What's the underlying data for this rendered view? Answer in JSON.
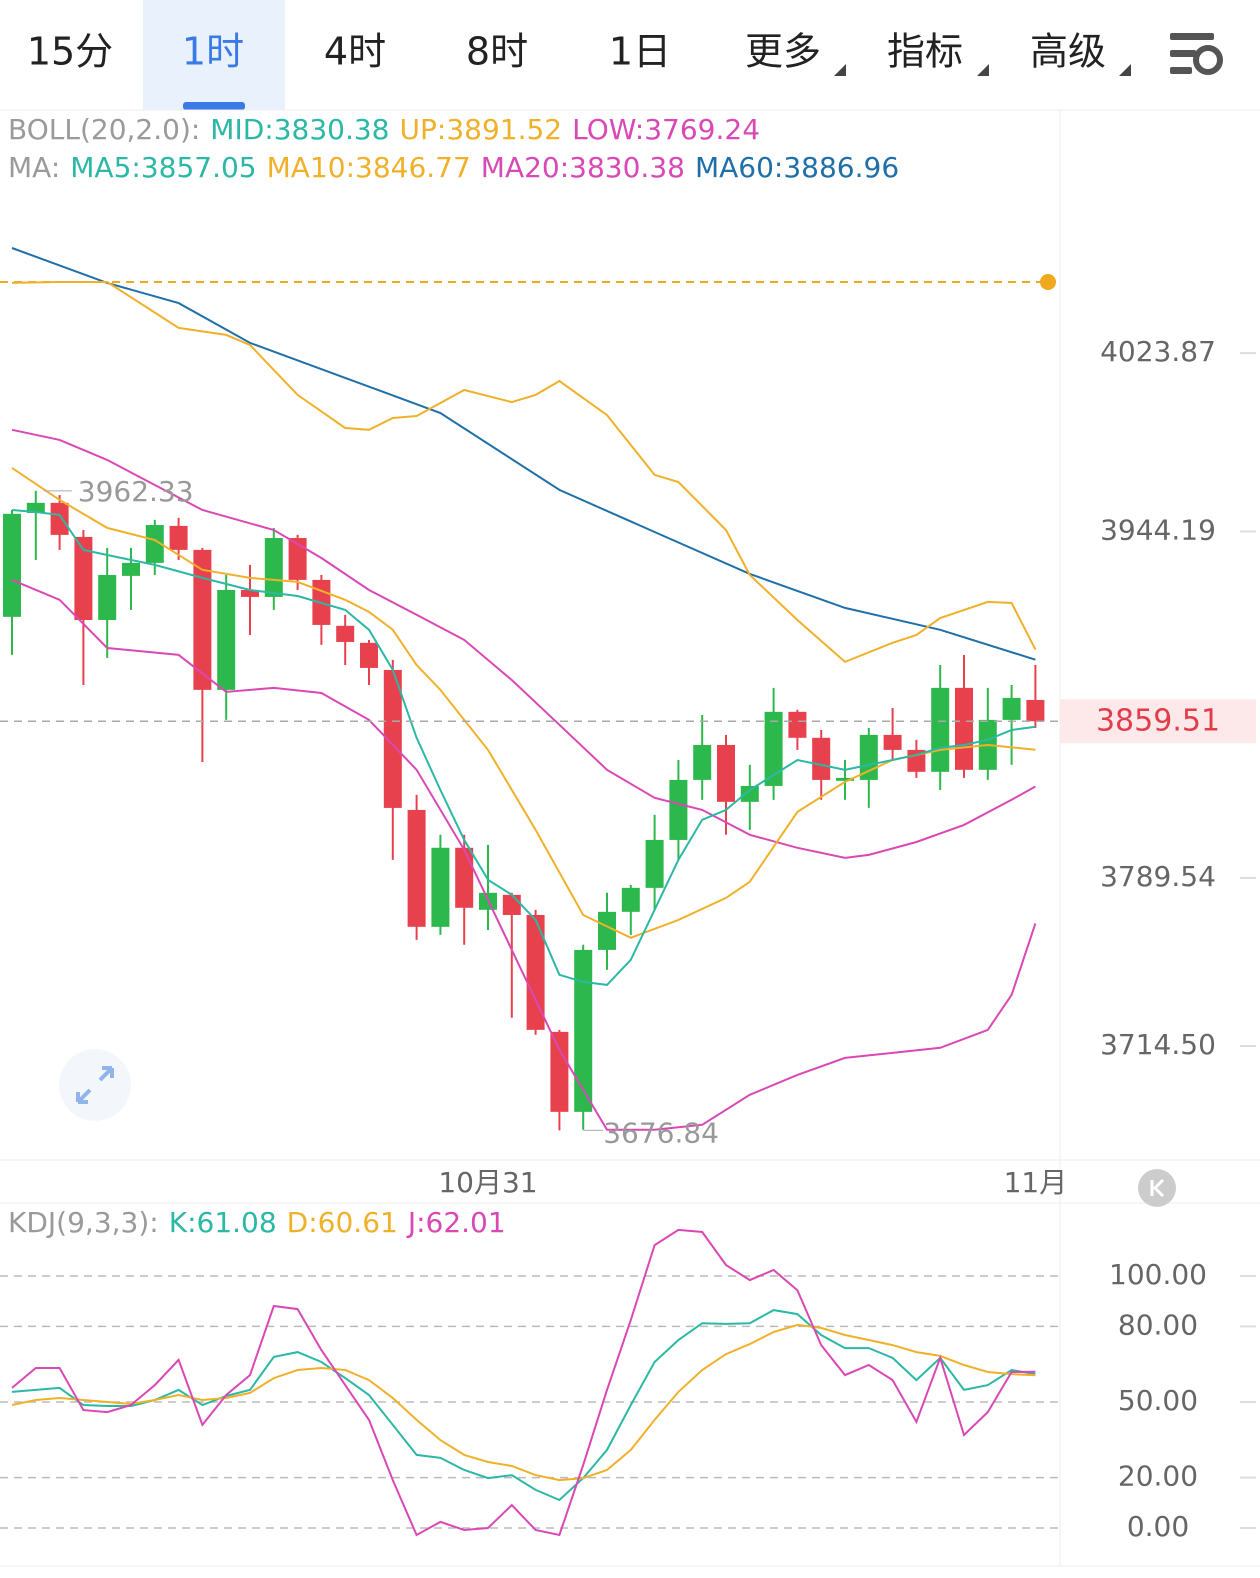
{
  "tabs": [
    "15分",
    "1时",
    "4时",
    "8时",
    "1日",
    "更多",
    "指标",
    "高级"
  ],
  "chart_data": [
    {
      "type": "candlestick",
      "legend": [
        {
          "title": "BOLL(20,2.0):",
          "items": [
            {
              "name": "MID:3830.38",
              "color": "#2bb8a4"
            },
            {
              "name": "UP:3891.52",
              "color": "#f0b12a"
            },
            {
              "name": "LOW:3769.24",
              "color": "#d948b4"
            }
          ]
        },
        {
          "title": "MA:",
          "items": [
            {
              "name": "MA5:3857.05",
              "color": "#2bb8a4"
            },
            {
              "name": "MA10:3846.77",
              "color": "#f0b12a"
            },
            {
              "name": "MA20:3830.38",
              "color": "#d948b4"
            },
            {
              "name": "MA60:3886.96",
              "color": "#1f6fa8"
            }
          ]
        }
      ],
      "categories": [
        null,
        null,
        null,
        null,
        null,
        null,
        null,
        null,
        null,
        null,
        null,
        null,
        null,
        null,
        null,
        null,
        null,
        null,
        null,
        null,
        "10月31",
        null,
        null,
        null,
        null,
        null,
        null,
        null,
        null,
        null,
        null,
        null,
        null,
        null,
        null,
        null,
        null,
        null,
        null,
        null,
        null,
        null,
        null,
        "11月"
      ],
      "open": [
        3906.1,
        3952.5,
        3957.0,
        3941.8,
        3904.7,
        3924.4,
        3930.2,
        3946.7,
        3936.0,
        3873.5,
        3918.1,
        3915.0,
        3941.3,
        3922.6,
        3902.1,
        3894.5,
        3882.4,
        3819.9,
        3767.7,
        3803.0,
        3775.3,
        3782.0,
        3773.0,
        3720.8,
        3685.1,
        3757.4,
        3774.4,
        3785.1,
        3806.5,
        3833.3,
        3848.9,
        3823.5,
        3830.6,
        3863.7,
        3852.1,
        3832.9,
        3833.3,
        3853.4,
        3846.7,
        3836.9,
        3874.4,
        3837.8,
        3860.1,
        3869.0
      ],
      "high": [
        3953.8,
        3962.33,
        3960.5,
        3944.9,
        3936.9,
        3936.9,
        3949.4,
        3950.3,
        3936.9,
        3924.8,
        3929.3,
        3945.8,
        3942.7,
        3924.8,
        3907.0,
        3895.8,
        3886.9,
        3826.6,
        3808.8,
        3808.8,
        3804.3,
        3782.9,
        3775.3,
        3721.7,
        3759.7,
        3782.9,
        3786.4,
        3817.7,
        3842.2,
        3862.3,
        3853.4,
        3840.0,
        3874.4,
        3864.6,
        3855.6,
        3842.2,
        3856.5,
        3865.4,
        3851.2,
        3884.6,
        3889.1,
        3874.4,
        3875.7,
        3884.6
      ],
      "low": [
        3889.1,
        3931.5,
        3936.0,
        3875.7,
        3887.8,
        3909.2,
        3924.8,
        3931.5,
        3841.3,
        3860.1,
        3898.0,
        3909.2,
        3918.1,
        3893.6,
        3884.6,
        3875.7,
        3797.6,
        3761.9,
        3764.1,
        3759.7,
        3766.3,
        3727.1,
        3719.5,
        3676.84,
        3677.1,
        3748.5,
        3764.1,
        3775.3,
        3797.6,
        3824.4,
        3808.8,
        3811.0,
        3824.4,
        3846.7,
        3824.4,
        3824.4,
        3820.8,
        3842.2,
        3834.2,
        3828.8,
        3834.2,
        3833.3,
        3840.0,
        3856.5
      ],
      "close": [
        3952.1,
        3957.0,
        3942.7,
        3904.7,
        3924.8,
        3930.2,
        3947.1,
        3936.0,
        3873.5,
        3918.1,
        3915.0,
        3941.3,
        3922.6,
        3902.5,
        3894.9,
        3883.3,
        3820.8,
        3767.7,
        3803.0,
        3776.2,
        3782.9,
        3773.0,
        3721.7,
        3685.1,
        3757.4,
        3774.4,
        3785.1,
        3806.5,
        3833.3,
        3848.9,
        3823.5,
        3830.6,
        3863.7,
        3852.1,
        3833.3,
        3834.2,
        3853.4,
        3846.7,
        3836.9,
        3874.4,
        3837.8,
        3860.1,
        3869.9,
        3859.51
      ],
      "up_color": "#2db84d",
      "down_color": "#e8414e",
      "lines": [
        {
          "color": "#1f6fa8",
          "x": [
            0,
            4,
            7,
            10,
            14,
            18,
            23,
            27,
            31,
            35,
            39,
            43
          ],
          "values": [
            4070.8,
            4055.2,
            4046.2,
            4028.4,
            4012.8,
            3997.1,
            3962.8,
            3944.0,
            3925.3,
            3910.1,
            3900.3,
            3886.96
          ]
        },
        {
          "color": "#f0b12a",
          "x": [
            0,
            2,
            4,
            7,
            9,
            10,
            12,
            14,
            15,
            16,
            17,
            19,
            21,
            22,
            23,
            25,
            27,
            28,
            30,
            31,
            33,
            35,
            37,
            38,
            39,
            41,
            42,
            43
          ],
          "values": [
            4055.2,
            4055.6,
            4055.6,
            4035.1,
            4032.0,
            4027.5,
            4005.2,
            3990.4,
            3989.6,
            3994.9,
            3995.8,
            4007.4,
            4002.0,
            4005.2,
            4011.4,
            3996.2,
            3969.5,
            3966.3,
            3944.9,
            3924.8,
            3904.7,
            3886.0,
            3894.5,
            3898.0,
            3905.6,
            3912.8,
            3912.3,
            3891.52
          ]
        },
        {
          "color": "#d948b4",
          "x": [
            0,
            2,
            4,
            8,
            11,
            13,
            15,
            17,
            19,
            21,
            23,
            25,
            27,
            29,
            31,
            33,
            35,
            36,
            38,
            40,
            42,
            43
          ],
          "values": [
            3989.6,
            3985.1,
            3976.2,
            3953.8,
            3944.9,
            3932.4,
            3918.1,
            3907.0,
            3895.8,
            3877.9,
            3857.9,
            3837.8,
            3825.3,
            3819.9,
            3808.8,
            3803.0,
            3798.5,
            3799.8,
            3805.6,
            3813.2,
            3824.4,
            3830.38
          ]
        },
        {
          "color": "#d948b4",
          "x": [
            0,
            2,
            4,
            7,
            9,
            11,
            13,
            15,
            17,
            19,
            21,
            23,
            25,
            27,
            29,
            31,
            33,
            35,
            37,
            39,
            41,
            42,
            43
          ],
          "values": [
            3922.6,
            3913.7,
            3892.2,
            3889.1,
            3872.6,
            3874.4,
            3872.1,
            3860.1,
            3837.8,
            3802.1,
            3757.4,
            3712.8,
            3677.1,
            3677.1,
            3679.3,
            3692.7,
            3701.6,
            3709.2,
            3711.4,
            3713.7,
            3721.7,
            3737.3,
            3769.24
          ]
        },
        {
          "color": "#f0b12a",
          "x": [
            0,
            2,
            4,
            6,
            8,
            10,
            12,
            14,
            15,
            16,
            17,
            18,
            20,
            22,
            24,
            26,
            28,
            30,
            31,
            33,
            35,
            37,
            39,
            41,
            43
          ],
          "values": [
            3972.6,
            3958.3,
            3945.8,
            3940.4,
            3927.1,
            3923.5,
            3921.7,
            3913.7,
            3908.3,
            3900.3,
            3884.6,
            3873.5,
            3846.7,
            3811.0,
            3773.0,
            3762.8,
            3770.8,
            3780.6,
            3787.8,
            3819.0,
            3832.4,
            3842.2,
            3846.7,
            3848.9,
            3846.77
          ]
        },
        {
          "color": "#2bb8a4",
          "x": [
            0,
            1,
            2,
            3,
            4,
            6,
            8,
            10,
            12,
            14,
            15,
            16,
            17,
            18,
            19,
            20,
            21,
            22,
            23,
            24,
            25,
            26,
            27,
            28,
            29,
            30,
            31,
            32,
            33,
            34,
            35,
            36,
            37,
            38,
            39,
            40,
            41,
            42,
            43
          ],
          "values": [
            3953.8,
            3952.9,
            3951.6,
            3936.0,
            3933.7,
            3929.3,
            3923.5,
            3918.1,
            3915.4,
            3909.2,
            3900.3,
            3882.4,
            3852.1,
            3828.8,
            3806.5,
            3788.7,
            3782.0,
            3770.8,
            3746.3,
            3743.1,
            3741.8,
            3753.0,
            3775.3,
            3797.6,
            3815.5,
            3819.9,
            3828.8,
            3835.5,
            3842.2,
            3840.0,
            3837.8,
            3840.0,
            3842.2,
            3844.5,
            3847.6,
            3848.9,
            3851.2,
            3855.6,
            3857.05
          ]
        }
      ],
      "ref_line": {
        "value": 4055.6,
        "color": "#f0a91d"
      },
      "ylim": [
        3663.6,
        4132.4
      ],
      "yticks": [
        4023.87,
        3944.19,
        3789.54,
        {
          "value": 3714.5,
          "label": "3714.50"
        }
      ]
    },
    {
      "type": "line",
      "legend_title": "KDJ(9,3,3):",
      "series": [
        {
          "name": "K:61.08",
          "color": "#2bb8a4",
          "values": [
            54.0,
            54.8,
            55.6,
            48.8,
            48.4,
            48.4,
            50.8,
            54.8,
            48.8,
            52.4,
            54.8,
            67.9,
            69.8,
            65.9,
            59.5,
            52.8,
            40.9,
            29.0,
            27.8,
            23.0,
            19.8,
            21.0,
            15.1,
            11.1,
            19.8,
            31.0,
            48.8,
            65.9,
            74.6,
            81.3,
            81.0,
            81.3,
            86.5,
            84.9,
            76.6,
            71.4,
            71.4,
            67.5,
            58.7,
            67.5,
            54.8,
            56.7,
            62.7,
            61.08
          ]
        },
        {
          "name": "D:60.61",
          "color": "#f0b12a",
          "values": [
            48.8,
            50.8,
            51.6,
            50.8,
            50.0,
            49.2,
            50.8,
            52.8,
            50.8,
            51.6,
            53.6,
            59.5,
            62.7,
            63.5,
            62.7,
            58.7,
            51.6,
            42.9,
            34.9,
            29.0,
            26.2,
            24.6,
            21.0,
            19.0,
            19.8,
            23.0,
            31.0,
            42.9,
            54.0,
            62.7,
            69.0,
            73.0,
            77.8,
            80.6,
            79.4,
            76.6,
            74.6,
            72.6,
            69.8,
            68.3,
            64.7,
            61.9,
            61.1,
            60.61
          ]
        },
        {
          "name": "J:62.01",
          "color": "#d948b4",
          "values": [
            55.6,
            63.5,
            63.5,
            46.8,
            46.0,
            48.8,
            56.7,
            66.7,
            40.9,
            52.8,
            60.7,
            88.1,
            86.9,
            70.6,
            56.7,
            42.9,
            19.0,
            -2.8,
            2.4,
            -0.8,
            0.0,
            9.1,
            -0.8,
            -2.8,
            25.0,
            54.8,
            82.5,
            112.3,
            118.3,
            117.5,
            104.4,
            98.4,
            102.4,
            94.4,
            72.6,
            60.7,
            64.7,
            58.7,
            42.1,
            67.5,
            36.9,
            46.0,
            61.9,
            62.01
          ]
        }
      ],
      "ylim": [
        -13.5,
        128.2
      ],
      "yticks": [
        {
          "value": 100,
          "label": "100.00"
        },
        {
          "value": 80,
          "label": "80.00"
        },
        {
          "value": 50,
          "label": "50.00"
        },
        {
          "value": 20,
          "label": "20.00"
        },
        {
          "value": 0,
          "label": "0.00"
        }
      ],
      "grid": true
    }
  ]
}
